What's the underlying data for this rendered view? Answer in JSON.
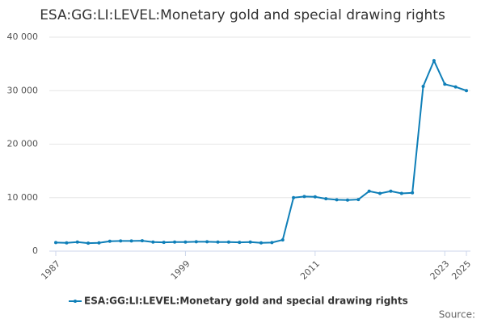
{
  "chart_data": {
    "type": "line",
    "title": "ESA:GG:LI:LEVEL:Monetary gold and special drawing rights",
    "x": [
      1987,
      1988,
      1989,
      1990,
      1991,
      1992,
      1993,
      1994,
      1995,
      1996,
      1997,
      1998,
      1999,
      2000,
      2001,
      2002,
      2003,
      2004,
      2005,
      2006,
      2007,
      2008,
      2009,
      2010,
      2011,
      2012,
      2013,
      2014,
      2015,
      2016,
      2017,
      2018,
      2019,
      2020,
      2021,
      2022,
      2023,
      2024,
      2025
    ],
    "series": [
      {
        "name": "ESA:GG:LI:LEVEL:Monetary gold and special drawing rights",
        "color": "#0f7fb8",
        "values": [
          1600,
          1550,
          1700,
          1500,
          1550,
          1850,
          1900,
          1900,
          1950,
          1700,
          1650,
          1700,
          1700,
          1750,
          1750,
          1700,
          1700,
          1650,
          1700,
          1550,
          1600,
          2100,
          10000,
          10200,
          10150,
          9800,
          9600,
          9550,
          9650,
          11200,
          10800,
          11200,
          10800,
          10900,
          30800,
          35600,
          31200,
          30700,
          30000
        ]
      }
    ],
    "xlim": [
      1987,
      2025
    ],
    "xticks": [
      1987,
      1999,
      2011,
      2023,
      2025
    ],
    "ylim": [
      0,
      40000
    ],
    "yticks": [
      0,
      {
        "value": 10000,
        "label": "10 000"
      },
      {
        "value": 20000,
        "label": "20 000"
      },
      {
        "value": 30000,
        "label": "30 000"
      },
      {
        "value": 40000,
        "label": "40 000"
      }
    ],
    "grid": true,
    "source": "Source:"
  }
}
